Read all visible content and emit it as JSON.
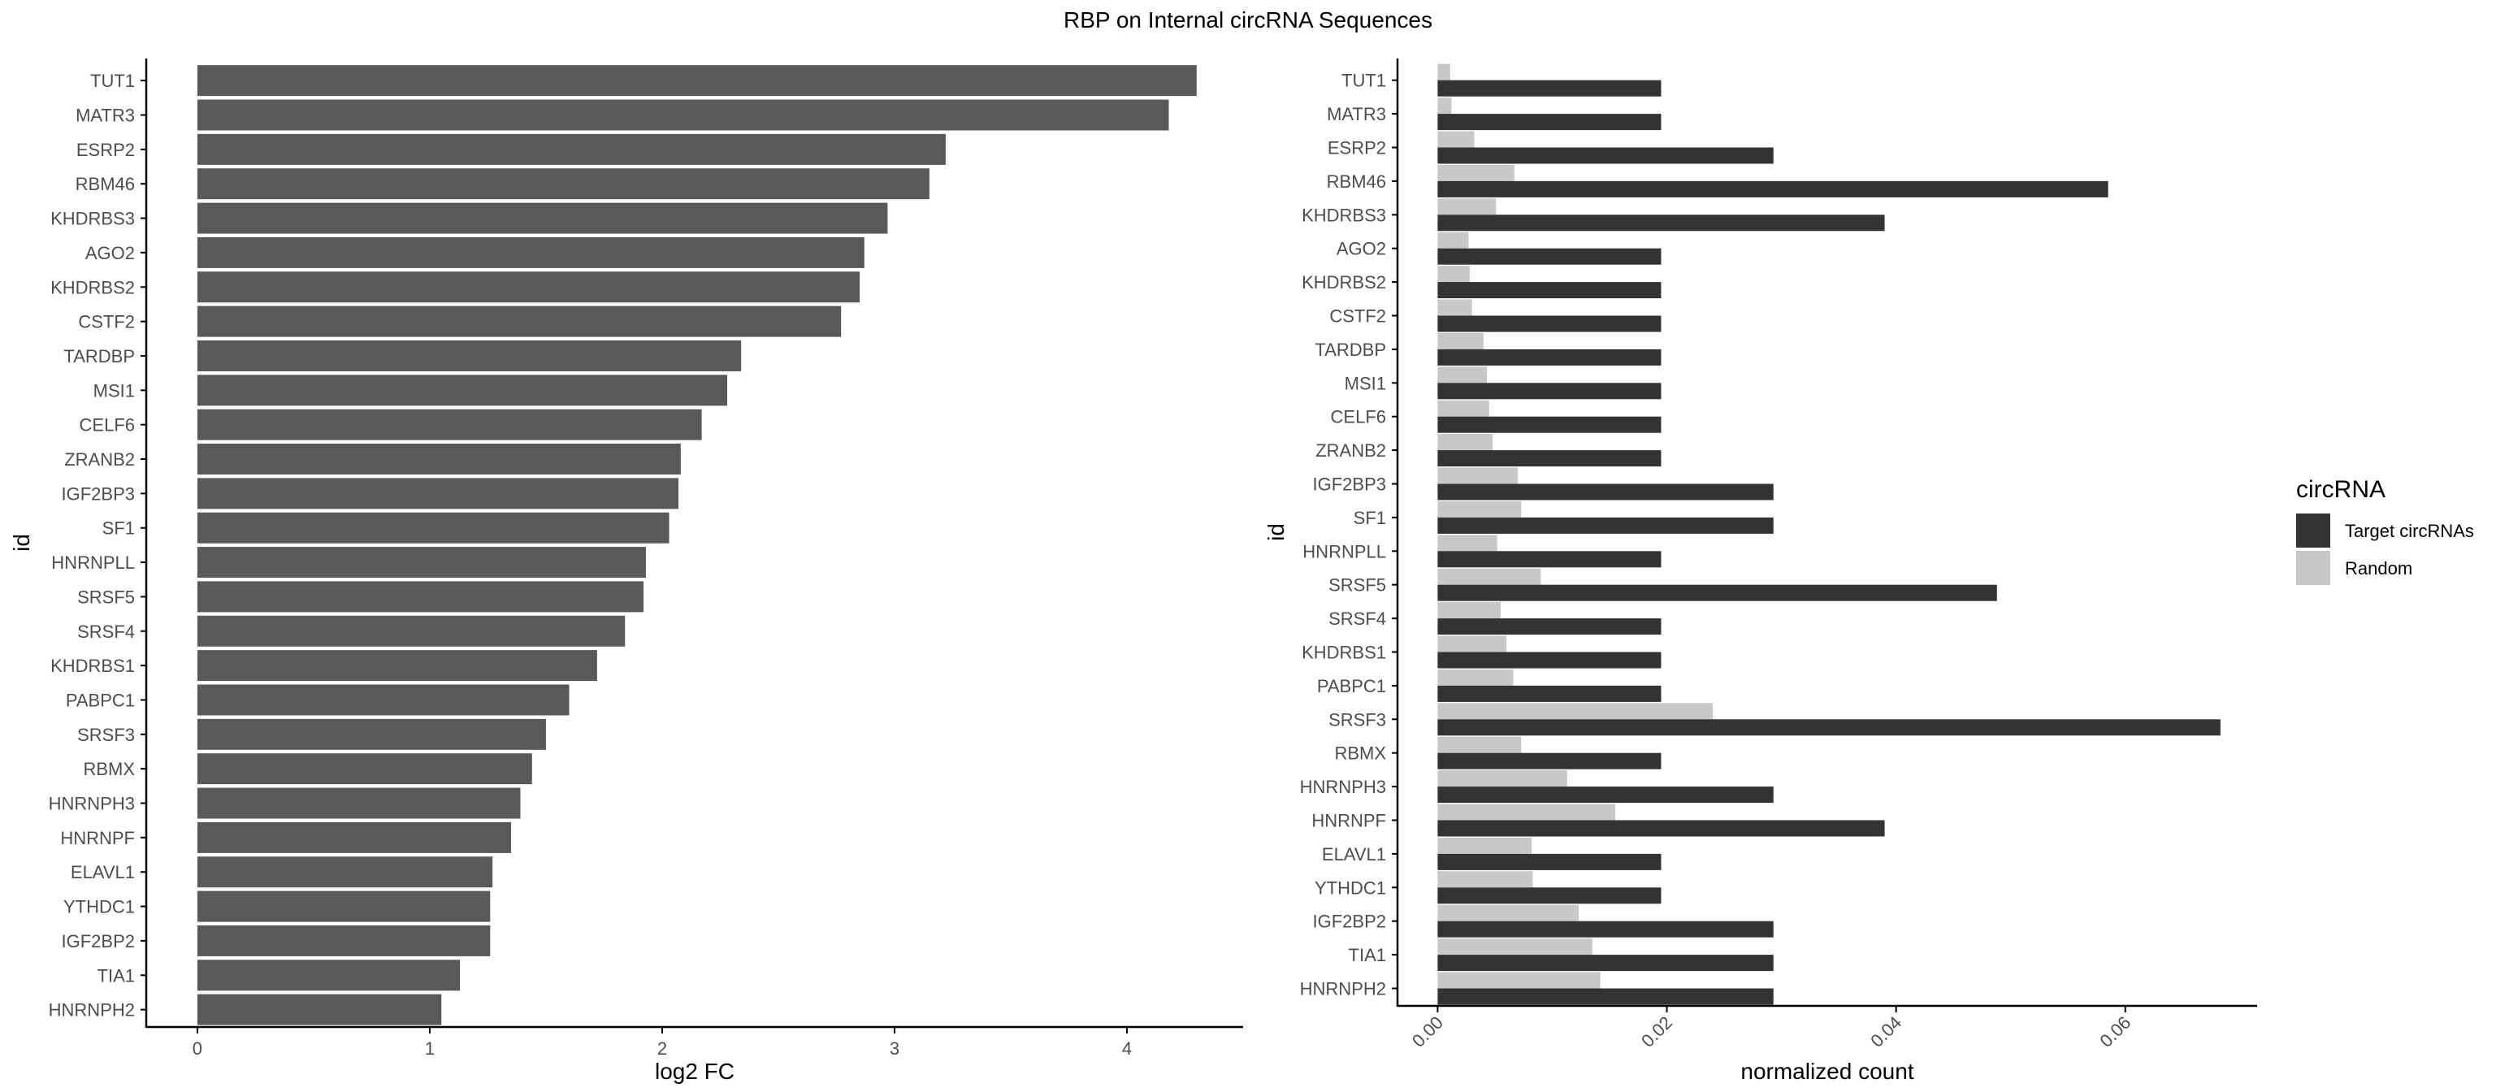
{
  "title": "RBP on Internal circRNA Sequences",
  "colors": {
    "left_bar": "#595959",
    "target": "#333333",
    "random": "#c8c8c8",
    "axis": "#000000",
    "tick_label": "#4d4d4d"
  },
  "chart_data": [
    {
      "type": "bar",
      "orientation": "horizontal",
      "categories": [
        "TUT1",
        "MATR3",
        "ESRP2",
        "RBM46",
        "KHDRBS3",
        "AGO2",
        "KHDRBS2",
        "CSTF2",
        "TARDBP",
        "MSI1",
        "CELF6",
        "ZRANB2",
        "IGF2BP3",
        "SF1",
        "HNRNPLL",
        "SRSF5",
        "SRSF4",
        "KHDRBS1",
        "PABPC1",
        "SRSF3",
        "RBMX",
        "HNRNPH3",
        "HNRNPF",
        "ELAVL1",
        "YTHDC1",
        "IGF2BP2",
        "TIA1",
        "HNRNPH2"
      ],
      "values": [
        4.3,
        4.18,
        3.22,
        3.15,
        2.97,
        2.87,
        2.85,
        2.77,
        2.34,
        2.28,
        2.17,
        2.08,
        2.07,
        2.03,
        1.93,
        1.92,
        1.84,
        1.72,
        1.6,
        1.5,
        1.44,
        1.39,
        1.35,
        1.27,
        1.26,
        1.26,
        1.13,
        1.05
      ],
      "xlabel": "log2 FC",
      "ylabel": "id",
      "xlim": [
        -0.22,
        4.5
      ],
      "xticks": [
        0,
        1,
        2,
        3,
        4
      ],
      "xtick_labels": [
        "0",
        "1",
        "2",
        "3",
        "4"
      ],
      "grid": false
    },
    {
      "type": "bar",
      "orientation": "horizontal",
      "grouped": true,
      "categories": [
        "TUT1",
        "MATR3",
        "ESRP2",
        "RBM46",
        "KHDRBS3",
        "AGO2",
        "KHDRBS2",
        "CSTF2",
        "TARDBP",
        "MSI1",
        "CELF6",
        "ZRANB2",
        "IGF2BP3",
        "SF1",
        "HNRNPLL",
        "SRSF5",
        "SRSF4",
        "KHDRBS1",
        "PABPC1",
        "SRSF3",
        "RBMX",
        "HNRNPH3",
        "HNRNPF",
        "ELAVL1",
        "YTHDC1",
        "IGF2BP2",
        "TIA1",
        "HNRNPH2"
      ],
      "series": [
        {
          "name": "Target circRNAs",
          "values": [
            0.0195,
            0.0195,
            0.0293,
            0.0585,
            0.039,
            0.0195,
            0.0195,
            0.0195,
            0.0195,
            0.0195,
            0.0195,
            0.0195,
            0.0293,
            0.0293,
            0.0195,
            0.0488,
            0.0195,
            0.0195,
            0.0195,
            0.0683,
            0.0195,
            0.0293,
            0.039,
            0.0195,
            0.0195,
            0.0293,
            0.0293,
            0.0293
          ]
        },
        {
          "name": "Random",
          "values": [
            0.0011,
            0.0012,
            0.0032,
            0.0067,
            0.0051,
            0.0027,
            0.0028,
            0.003,
            0.004,
            0.0043,
            0.0045,
            0.0048,
            0.007,
            0.0073,
            0.0052,
            0.009,
            0.0055,
            0.006,
            0.0066,
            0.024,
            0.0073,
            0.0113,
            0.0155,
            0.0082,
            0.0083,
            0.0123,
            0.0135,
            0.0142
          ]
        }
      ],
      "xlabel": "normalized count",
      "ylabel": "id",
      "xlim": [
        -0.0035,
        0.0715
      ],
      "xticks": [
        0,
        0.02,
        0.04,
        0.06
      ],
      "xtick_labels": [
        "0.00",
        "0.02",
        "0.04",
        "0.06"
      ],
      "legend_title": "circRNA",
      "legend_position": "right",
      "grid": false
    }
  ]
}
